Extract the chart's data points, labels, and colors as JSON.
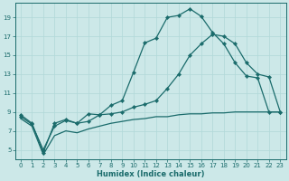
{
  "xlabel": "Humidex (Indice chaleur)",
  "background_color": "#cce8e8",
  "line_color": "#1a6b6b",
  "grid_color": "#b0d8d8",
  "xlim": [
    -0.5,
    23.5
  ],
  "ylim": [
    4.0,
    20.5
  ],
  "yticks": [
    5,
    7,
    9,
    11,
    13,
    15,
    17,
    19
  ],
  "xticks": [
    0,
    1,
    2,
    3,
    4,
    5,
    6,
    7,
    8,
    9,
    10,
    11,
    12,
    13,
    14,
    15,
    16,
    17,
    18,
    19,
    20,
    21,
    22,
    23
  ],
  "line1_x": [
    0,
    1,
    2,
    3,
    4,
    5,
    6,
    7,
    8,
    9,
    10,
    11,
    12,
    13,
    14,
    15,
    16,
    17,
    18,
    19,
    20,
    21,
    22,
    23
  ],
  "line1_y": [
    8.7,
    7.8,
    4.7,
    7.8,
    8.2,
    7.8,
    8.8,
    8.7,
    9.7,
    10.2,
    13.2,
    16.3,
    16.8,
    19.0,
    19.2,
    19.9,
    19.1,
    17.4,
    16.2,
    14.2,
    12.8,
    12.6,
    9.0,
    9.0
  ],
  "line2_x": [
    0,
    1,
    2,
    3,
    4,
    5,
    6,
    7,
    8,
    9,
    10,
    11,
    12,
    13,
    14,
    15,
    16,
    17,
    18,
    19,
    20,
    21,
    22,
    23
  ],
  "line2_y": [
    8.5,
    7.7,
    5.0,
    7.5,
    8.1,
    7.8,
    8.0,
    8.7,
    8.8,
    9.0,
    9.5,
    9.8,
    10.2,
    11.5,
    13.0,
    15.0,
    16.2,
    17.2,
    17.0,
    16.2,
    14.2,
    13.0,
    12.7,
    9.0
  ],
  "line3_x": [
    0,
    1,
    2,
    3,
    4,
    5,
    6,
    7,
    8,
    9,
    10,
    11,
    12,
    13,
    14,
    15,
    16,
    17,
    18,
    19,
    20,
    21,
    22,
    23
  ],
  "line3_y": [
    8.3,
    7.5,
    4.5,
    6.5,
    7.0,
    6.8,
    7.2,
    7.5,
    7.8,
    8.0,
    8.2,
    8.3,
    8.5,
    8.5,
    8.7,
    8.8,
    8.8,
    8.9,
    8.9,
    9.0,
    9.0,
    9.0,
    9.0,
    9.0
  ]
}
